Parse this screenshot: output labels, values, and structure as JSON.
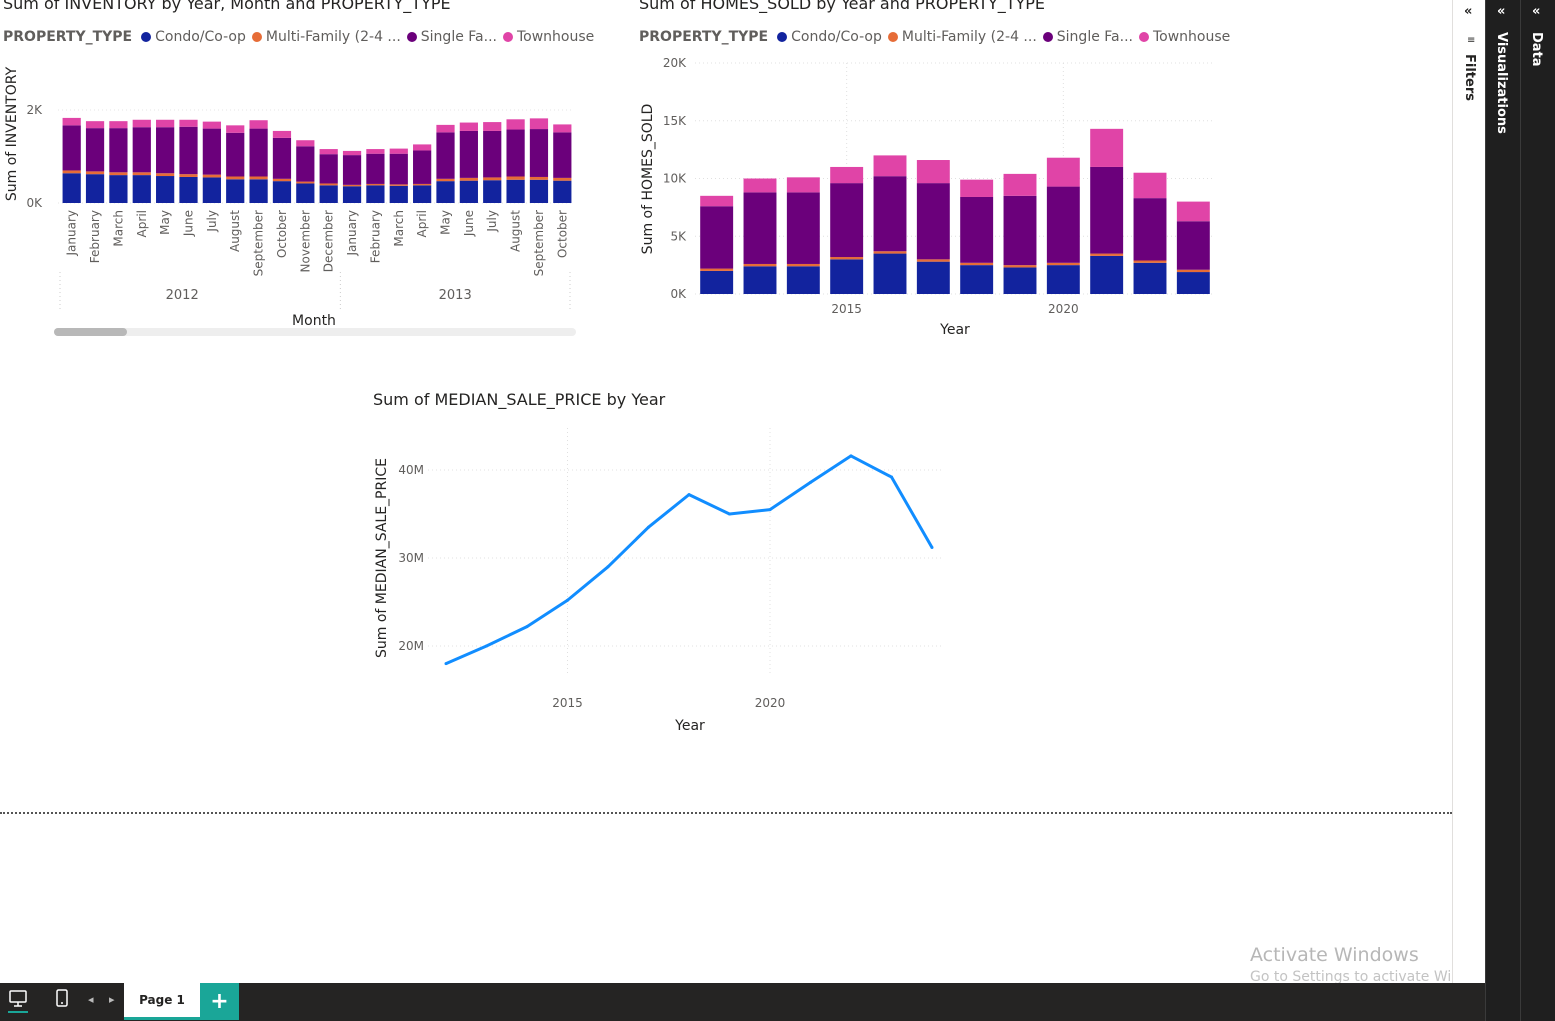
{
  "charts": {
    "inventory": {
      "title": "Sum of INVENTORY by Year, Month and PROPERTY_TYPE",
      "legend_title": "PROPERTY_TYPE",
      "legend": [
        "Condo/Co-op",
        "Multi-Family (2-4 ...",
        "Single Fa...",
        "Townhouse"
      ]
    },
    "homes_sold": {
      "title": "Sum of HOMES_SOLD by Year and PROPERTY_TYPE",
      "legend_title": "PROPERTY_TYPE",
      "legend": [
        "Condo/Co-op",
        "Multi-Family (2-4 ...",
        "Single Fa...",
        "Townhouse"
      ]
    },
    "median_price": {
      "title": "Sum of MEDIAN_SALE_PRICE by Year"
    }
  },
  "colors": {
    "condo": "#12239e",
    "multi": "#e66c37",
    "single": "#6b007b",
    "townhouse": "#e044a7",
    "line": "#118dff"
  },
  "chart_data": [
    {
      "type": "bar",
      "stacked": true,
      "title": "Sum of INVENTORY by Year, Month and PROPERTY_TYPE",
      "xlabel": "Month",
      "ylabel": "Sum of INVENTORY",
      "yticks": [
        "0K",
        "2K"
      ],
      "ylim": [
        0,
        2000
      ],
      "groups": [
        {
          "year": "2012",
          "months": [
            "January",
            "February",
            "March",
            "April",
            "May",
            "June",
            "July",
            "August",
            "September",
            "October",
            "November",
            "December"
          ]
        },
        {
          "year": "2013",
          "months": [
            "January",
            "February",
            "March",
            "April",
            "May",
            "June",
            "July",
            "August",
            "September",
            "October"
          ]
        }
      ],
      "series": [
        {
          "name": "Condo/Co-op",
          "values": [
            640,
            620,
            600,
            600,
            580,
            560,
            550,
            510,
            510,
            470,
            420,
            380,
            360,
            380,
            370,
            380,
            470,
            480,
            490,
            500,
            500,
            480
          ]
        },
        {
          "name": "Multi-Family (2-4 ...",
          "values": [
            60,
            60,
            60,
            60,
            60,
            60,
            60,
            60,
            60,
            50,
            40,
            40,
            30,
            30,
            30,
            30,
            50,
            60,
            60,
            70,
            60,
            60
          ]
        },
        {
          "name": "Single Fa...",
          "values": [
            970,
            930,
            950,
            970,
            990,
            1020,
            990,
            940,
            1030,
            880,
            760,
            630,
            640,
            650,
            660,
            720,
            1000,
            1010,
            1000,
            1010,
            1030,
            980
          ]
        },
        {
          "name": "Townhouse",
          "values": [
            160,
            150,
            150,
            160,
            160,
            150,
            150,
            160,
            180,
            150,
            130,
            110,
            90,
            100,
            110,
            130,
            160,
            180,
            190,
            220,
            230,
            170
          ]
        }
      ]
    },
    {
      "type": "bar",
      "stacked": true,
      "title": "Sum of HOMES_SOLD by Year and PROPERTY_TYPE",
      "xlabel": "Year",
      "ylabel": "Sum of HOMES_SOLD",
      "x": [
        2012,
        2013,
        2014,
        2015,
        2016,
        2017,
        2018,
        2019,
        2020,
        2021,
        2022,
        2023
      ],
      "xticks": [
        2015,
        2020
      ],
      "yticks": [
        "0K",
        "5K",
        "10K",
        "15K",
        "20K"
      ],
      "ylim": [
        0,
        20000
      ],
      "series": [
        {
          "name": "Condo/Co-op",
          "values": [
            2000,
            2400,
            2400,
            3000,
            3500,
            2800,
            2500,
            2300,
            2500,
            3300,
            2700,
            1900
          ]
        },
        {
          "name": "Multi-Family (2-4 ...",
          "values": [
            200,
            200,
            200,
            200,
            200,
            200,
            200,
            200,
            200,
            200,
            200,
            200
          ]
        },
        {
          "name": "Single Fa...",
          "values": [
            5400,
            6200,
            6200,
            6400,
            6500,
            6600,
            5700,
            6000,
            6600,
            7500,
            5400,
            4200
          ]
        },
        {
          "name": "Townhouse",
          "values": [
            900,
            1200,
            1300,
            1400,
            1800,
            2000,
            1500,
            1900,
            2500,
            3300,
            2200,
            1700
          ]
        }
      ]
    },
    {
      "type": "line",
      "title": "Sum of MEDIAN_SALE_PRICE by Year",
      "xlabel": "Year",
      "ylabel": "Sum of MEDIAN_SALE_PRICE",
      "x": [
        2012,
        2013,
        2014,
        2015,
        2016,
        2017,
        2018,
        2019,
        2020,
        2021,
        2022,
        2023,
        2024
      ],
      "xticks": [
        2015,
        2020
      ],
      "yticks": [
        "20M",
        "30M",
        "40M"
      ],
      "ylim": [
        16000000,
        45000000
      ],
      "series": [
        {
          "name": "MEDIAN_SALE_PRICE",
          "values": [
            18000000,
            20000000,
            22200000,
            25200000,
            29000000,
            33500000,
            37200000,
            35000000,
            35500000,
            38600000,
            41600000,
            39200000,
            31200000
          ]
        }
      ]
    }
  ],
  "panes": {
    "filters": "Filters",
    "visualizations": "Visualizations",
    "data": "Data",
    "collapse_glyph": "«"
  },
  "bottom": {
    "page_tab": "Page 1",
    "add": "+",
    "prev": "◂",
    "next": "▸"
  },
  "watermark": {
    "line1": "Activate Windows",
    "line2": "Go to Settings to activate Windows."
  }
}
